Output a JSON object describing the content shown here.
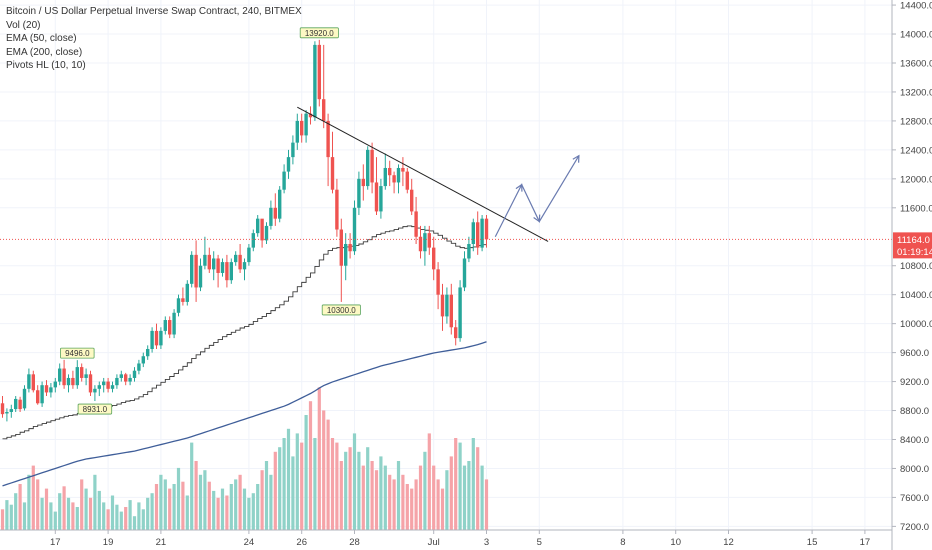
{
  "legend": {
    "title": "Bitcoin / US Dollar Perpetual Inverse Swap Contract, 240, BITMEX",
    "vol": "Vol (20)",
    "ema50": "EMA (50, close)",
    "ema200": "EMA (200, close)",
    "pivots": "Pivots HL (10, 10)"
  },
  "colors": {
    "up": "#26a69a",
    "down": "#ef5350",
    "vol_up": "#8fd2c8",
    "vol_down": "#f5a3a8",
    "ema50": "#3b3b3b",
    "ema200": "#3f5e99",
    "trendline": "#222222",
    "arrows": "#6a7bb0",
    "price_line": "#ef5350",
    "pivot_fill": "#fdf9c4",
    "pivot_border": "#5aa35a"
  },
  "current_price": {
    "price_label": "11164.0",
    "countdown": "01:19:14"
  },
  "chart_data": {
    "type": "candlestick",
    "y_axis": {
      "range": [
        7150,
        14470
      ],
      "ticks": [
        "14400.0",
        "14000.0",
        "13600.0",
        "13200.0",
        "12800.0",
        "12400.0",
        "12000.0",
        "11600.0",
        "10800.0",
        "10400.0",
        "10000.0",
        "9600.0",
        "9200.0",
        "8800.0",
        "8400.0",
        "8000.0",
        "7600.0",
        "7200.0"
      ],
      "tick_values": [
        14400,
        14000,
        13600,
        13200,
        12800,
        12400,
        12000,
        11600,
        10800,
        10400,
        10000,
        9600,
        9200,
        8800,
        8400,
        8000,
        7600,
        7200
      ]
    },
    "x_axis": {
      "tick_labels": [
        "17",
        "19",
        "21",
        "24",
        "26",
        "28",
        "Jul",
        "3",
        "5",
        "8",
        "10",
        "12",
        "15",
        "17"
      ],
      "tick_slots": [
        12,
        24,
        36,
        56,
        68,
        80,
        98,
        110,
        122,
        141,
        153,
        165,
        184,
        196
      ]
    },
    "pivots": [
      {
        "label": "13920.0",
        "slot": 72,
        "value": 13920,
        "type": "high"
      },
      {
        "label": "9496.0",
        "slot": 17,
        "value": 9496,
        "type": "high"
      },
      {
        "label": "8931.0",
        "slot": 21,
        "value": 8931,
        "type": "low"
      },
      {
        "label": "10300.0",
        "slot": 77,
        "value": 10300,
        "type": "low"
      }
    ],
    "candles": [
      [
        8900,
        9000,
        8700,
        8750
      ],
      [
        8760,
        8830,
        8650,
        8780
      ],
      [
        8780,
        8880,
        8700,
        8820
      ],
      [
        8820,
        9000,
        8780,
        8960
      ],
      [
        8950,
        8990,
        8780,
        8820
      ],
      [
        8830,
        9150,
        8800,
        9100
      ],
      [
        9100,
        9380,
        9050,
        9300
      ],
      [
        9300,
        9350,
        9050,
        9080
      ],
      [
        9080,
        9150,
        8880,
        8900
      ],
      [
        8900,
        9200,
        8850,
        9150
      ],
      [
        9150,
        9220,
        9000,
        9050
      ],
      [
        9050,
        9180,
        8980,
        9120
      ],
      [
        9120,
        9250,
        9050,
        9200
      ],
      [
        9200,
        9450,
        9150,
        9380
      ],
      [
        9380,
        9500,
        9100,
        9150
      ],
      [
        9150,
        9300,
        9050,
        9250
      ],
      [
        9250,
        9350,
        9100,
        9150
      ],
      [
        9150,
        9496,
        9100,
        9400
      ],
      [
        9400,
        9450,
        9200,
        9250
      ],
      [
        9250,
        9380,
        9150,
        9300
      ],
      [
        9300,
        9350,
        9000,
        9050
      ],
      [
        9050,
        9150,
        8931,
        9100
      ],
      [
        9100,
        9200,
        9000,
        9150
      ],
      [
        9150,
        9250,
        9050,
        9200
      ],
      [
        9200,
        9250,
        9050,
        9100
      ],
      [
        9100,
        9200,
        9050,
        9150
      ],
      [
        9150,
        9300,
        9100,
        9250
      ],
      [
        9250,
        9350,
        9200,
        9300
      ],
      [
        9300,
        9320,
        9150,
        9200
      ],
      [
        9200,
        9300,
        9150,
        9250
      ],
      [
        9250,
        9400,
        9200,
        9350
      ],
      [
        9350,
        9500,
        9300,
        9450
      ],
      [
        9450,
        9600,
        9400,
        9550
      ],
      [
        9550,
        9700,
        9500,
        9650
      ],
      [
        9650,
        9950,
        9600,
        9900
      ],
      [
        9900,
        10000,
        9650,
        9700
      ],
      [
        9700,
        9950,
        9650,
        9900
      ],
      [
        9900,
        10100,
        9850,
        10050
      ],
      [
        10050,
        10100,
        9800,
        9850
      ],
      [
        9850,
        10200,
        9800,
        10150
      ],
      [
        10150,
        10400,
        10100,
        10350
      ],
      [
        10350,
        10500,
        10250,
        10300
      ],
      [
        10300,
        10600,
        10250,
        10550
      ],
      [
        10550,
        11000,
        10500,
        10950
      ],
      [
        10950,
        11150,
        10300,
        10500
      ],
      [
        10500,
        10900,
        10450,
        10800
      ],
      [
        10800,
        11200,
        10750,
        10950
      ],
      [
        10950,
        11050,
        10700,
        10750
      ],
      [
        10750,
        11000,
        10600,
        10900
      ],
      [
        10900,
        10950,
        10500,
        10700
      ],
      [
        10700,
        10900,
        10650,
        10850
      ],
      [
        10850,
        10950,
        10500,
        10600
      ],
      [
        10600,
        10900,
        10550,
        10850
      ],
      [
        10850,
        11000,
        10800,
        10950
      ],
      [
        10950,
        11100,
        10700,
        10750
      ],
      [
        10750,
        10900,
        10600,
        10850
      ],
      [
        10850,
        11100,
        10800,
        11050
      ],
      [
        11050,
        11300,
        11000,
        11250
      ],
      [
        11250,
        11500,
        11200,
        11450
      ],
      [
        11450,
        11400,
        11050,
        11150
      ],
      [
        11150,
        11400,
        11100,
        11350
      ],
      [
        11350,
        11700,
        11300,
        11600
      ],
      [
        11600,
        11800,
        11350,
        11450
      ],
      [
        11450,
        11900,
        11400,
        11850
      ],
      [
        11850,
        12200,
        11800,
        12100
      ],
      [
        12100,
        12400,
        12000,
        12300
      ],
      [
        12300,
        12600,
        12200,
        12500
      ],
      [
        12500,
        12900,
        12400,
        12800
      ],
      [
        12800,
        12900,
        12500,
        12600
      ],
      [
        12600,
        12950,
        12500,
        12900
      ],
      [
        12900,
        13000,
        12750,
        12850
      ],
      [
        12850,
        13900,
        12800,
        13850
      ],
      [
        13850,
        13920,
        13000,
        13100
      ],
      [
        13100,
        13850,
        12700,
        12800
      ],
      [
        12800,
        12900,
        11900,
        12300
      ],
      [
        12300,
        12650,
        11800,
        11850
      ],
      [
        11850,
        12000,
        11200,
        11300
      ],
      [
        11300,
        11450,
        10300,
        10800
      ],
      [
        10800,
        11250,
        10600,
        11100
      ],
      [
        11100,
        11250,
        10900,
        11000
      ],
      [
        11000,
        11700,
        10950,
        11600
      ],
      [
        11600,
        12100,
        11500,
        12000
      ],
      [
        12000,
        12200,
        11700,
        11900
      ],
      [
        11900,
        12450,
        11850,
        12400
      ],
      [
        12400,
        12500,
        11800,
        11950
      ],
      [
        11950,
        12300,
        11500,
        11550
      ],
      [
        11550,
        12000,
        11450,
        11900
      ],
      [
        11900,
        12350,
        11850,
        12150
      ],
      [
        12150,
        12250,
        11900,
        12050
      ],
      [
        12050,
        12100,
        11800,
        11950
      ],
      [
        11950,
        12200,
        11800,
        12150
      ],
      [
        12150,
        12300,
        11900,
        12100
      ],
      [
        12100,
        12150,
        11800,
        11850
      ],
      [
        11850,
        12000,
        11500,
        11550
      ],
      [
        11550,
        11750,
        11100,
        11200
      ],
      [
        11200,
        11350,
        10900,
        11000
      ],
      [
        11000,
        11350,
        10800,
        11250
      ],
      [
        11250,
        11350,
        10950,
        11050
      ],
      [
        11050,
        11200,
        10600,
        10750
      ],
      [
        10750,
        10850,
        10200,
        10400
      ],
      [
        10400,
        10550,
        9900,
        10100
      ],
      [
        10100,
        10500,
        10000,
        10400
      ],
      [
        10400,
        10550,
        9850,
        9950
      ],
      [
        9950,
        10050,
        9700,
        9800
      ],
      [
        9800,
        10600,
        9750,
        10500
      ],
      [
        10500,
        11000,
        10450,
        10900
      ],
      [
        10900,
        11200,
        10850,
        11100
      ],
      [
        11100,
        11450,
        11000,
        11400
      ],
      [
        11400,
        11550,
        10950,
        11050
      ],
      [
        11050,
        11500,
        11000,
        11450
      ],
      [
        11450,
        11500,
        11050,
        11164
      ]
    ],
    "ema50": [
      8410,
      8430,
      8450,
      8470,
      8500,
      8520,
      8550,
      8580,
      8600,
      8620,
      8640,
      8660,
      8680,
      8700,
      8720,
      8730,
      8740,
      8760,
      8780,
      8800,
      8800,
      8810,
      8830,
      8850,
      8860,
      8870,
      8890,
      8910,
      8930,
      8940,
      8960,
      8990,
      9020,
      9060,
      9110,
      9150,
      9190,
      9230,
      9270,
      9310,
      9360,
      9410,
      9460,
      9520,
      9570,
      9610,
      9660,
      9700,
      9740,
      9780,
      9820,
      9850,
      9880,
      9910,
      9940,
      9960,
      9990,
      10030,
      10070,
      10100,
      10140,
      10180,
      10220,
      10260,
      10310,
      10370,
      10440,
      10510,
      10570,
      10640,
      10700,
      10790,
      10880,
      10960,
      11010,
      11040,
      11050,
      11050,
      11060,
      11070,
      11080,
      11100,
      11130,
      11160,
      11200,
      11230,
      11250,
      11270,
      11280,
      11300,
      11320,
      11340,
      11350,
      11340,
      11320,
      11300,
      11290,
      11280,
      11250,
      11220,
      11180,
      11140,
      11110,
      11070,
      11050,
      11040,
      11050,
      11060,
      11080,
      11090,
      11100
    ],
    "ema200": [
      7760,
      7780,
      7800,
      7820,
      7840,
      7860,
      7880,
      7900,
      7920,
      7940,
      7960,
      7980,
      8000,
      8020,
      8040,
      8060,
      8080,
      8100,
      8115,
      8130,
      8140,
      8150,
      8160,
      8170,
      8180,
      8190,
      8200,
      8210,
      8220,
      8230,
      8240,
      8255,
      8270,
      8285,
      8300,
      8315,
      8330,
      8345,
      8360,
      8375,
      8390,
      8405,
      8420,
      8440,
      8460,
      8480,
      8500,
      8520,
      8540,
      8560,
      8580,
      8600,
      8620,
      8640,
      8660,
      8680,
      8700,
      8720,
      8740,
      8760,
      8780,
      8800,
      8820,
      8840,
      8860,
      8885,
      8915,
      8945,
      8975,
      9005,
      9035,
      9070,
      9110,
      9145,
      9170,
      9195,
      9215,
      9235,
      9255,
      9275,
      9295,
      9315,
      9335,
      9355,
      9375,
      9395,
      9415,
      9430,
      9445,
      9460,
      9475,
      9490,
      9505,
      9520,
      9535,
      9550,
      9565,
      9580,
      9595,
      9605,
      9615,
      9625,
      9635,
      9645,
      9655,
      9665,
      9680,
      9695,
      9710,
      9730,
      9750
    ],
    "volume": [
      9,
      13,
      11,
      16,
      20,
      12,
      24,
      28,
      22,
      14,
      18,
      12,
      8,
      16,
      19,
      14,
      12,
      10,
      22,
      18,
      14,
      24,
      17,
      12,
      9,
      15,
      11,
      8,
      10,
      13,
      6,
      12,
      9,
      14,
      16,
      20,
      24,
      22,
      18,
      20,
      27,
      21,
      15,
      38,
      30,
      24,
      26,
      21,
      17,
      14,
      18,
      15,
      20,
      22,
      24,
      18,
      14,
      16,
      20,
      26,
      30,
      24,
      34,
      36,
      40,
      44,
      32,
      42,
      38,
      50,
      56,
      40,
      62,
      52,
      48,
      40,
      38,
      30,
      34,
      36,
      42,
      34,
      28,
      36,
      30,
      26,
      32,
      28,
      24,
      22,
      30,
      24,
      20,
      18,
      22,
      28,
      34,
      42,
      28,
      22,
      18,
      26,
      32,
      40,
      38,
      28,
      30,
      40,
      36,
      28,
      22
    ]
  }
}
